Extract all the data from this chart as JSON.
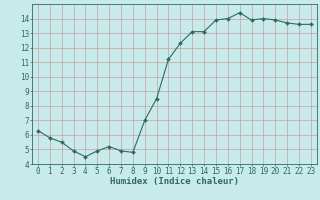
{
  "x": [
    0,
    1,
    2,
    3,
    4,
    5,
    6,
    7,
    8,
    9,
    10,
    11,
    12,
    13,
    14,
    15,
    16,
    17,
    18,
    19,
    20,
    21,
    22,
    23
  ],
  "y": [
    6.3,
    5.8,
    5.5,
    4.9,
    4.5,
    4.9,
    5.2,
    4.9,
    4.8,
    7.0,
    8.5,
    11.2,
    12.3,
    13.1,
    13.1,
    13.9,
    14.0,
    14.4,
    13.9,
    14.0,
    13.9,
    13.7,
    13.6,
    13.6
  ],
  "line_color": "#2e6b5e",
  "marker": "D",
  "marker_size": 2.0,
  "bg_color": "#c8eaea",
  "grid_color": "#c8a0a0",
  "axis_color": "#2e6b5e",
  "xlabel": "Humidex (Indice chaleur)",
  "xlabel_fontsize": 6.5,
  "tick_fontsize": 5.5,
  "ylim": [
    4,
    15
  ],
  "xlim": [
    -0.5,
    23.5
  ],
  "yticks": [
    4,
    5,
    6,
    7,
    8,
    9,
    10,
    11,
    12,
    13,
    14
  ],
  "xtick_labels": [
    "0",
    "1",
    "2",
    "3",
    "4",
    "5",
    "6",
    "7",
    "8",
    "9",
    "10",
    "11",
    "12",
    "13",
    "14",
    "15",
    "16",
    "17",
    "18",
    "19",
    "20",
    "21",
    "22",
    "23"
  ],
  "linewidth": 0.8
}
